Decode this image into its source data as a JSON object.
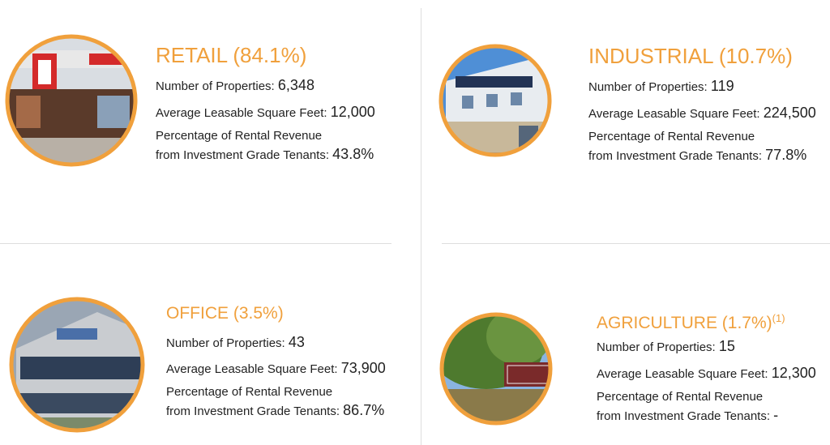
{
  "panels": [
    {
      "title": "RETAIL (84.1%)",
      "stats": [
        {
          "label": [
            "Number of Properties:"
          ],
          "value": "6,348"
        },
        {
          "label": [
            "Average Leasable Square Feet:"
          ],
          "value": "12,000"
        },
        {
          "label": [
            "Percentage of Rental Revenue",
            "from Investment Grade Tenants:"
          ],
          "value": "43.8%"
        }
      ]
    },
    {
      "title": "INDUSTRIAL (10.7%)",
      "stats": [
        {
          "label": [
            "Number of Properties:"
          ],
          "value": "119"
        },
        {
          "label": [
            "Average Leasable Square Feet:"
          ],
          "value": "224,500"
        },
        {
          "label": [
            "Percentage of Rental Revenue",
            "from Investment Grade Tenants:"
          ],
          "value": "77.8%"
        }
      ]
    },
    {
      "title": "OFFICE (3.5%)",
      "stats": [
        {
          "label": [
            "Number of Properties:"
          ],
          "value": "43"
        },
        {
          "label": [
            "Average Leasable Square Feet:"
          ],
          "value": "73,900"
        },
        {
          "label": [
            "Percentage of Rental Revenue",
            "from Investment Grade Tenants:"
          ],
          "value": "86.7%"
        }
      ]
    },
    {
      "title": "AGRICULTURE (1.7%)",
      "footnote": "(1)",
      "stats": [
        {
          "label": [
            "Number of Properties:"
          ],
          "value": "15"
        },
        {
          "label": [
            "Average Leasable Square Feet:"
          ],
          "value": "12,300"
        },
        {
          "label": [
            "Percentage of Rental Revenue",
            "from Investment Grade Tenants:"
          ],
          "value": "-"
        }
      ]
    }
  ]
}
